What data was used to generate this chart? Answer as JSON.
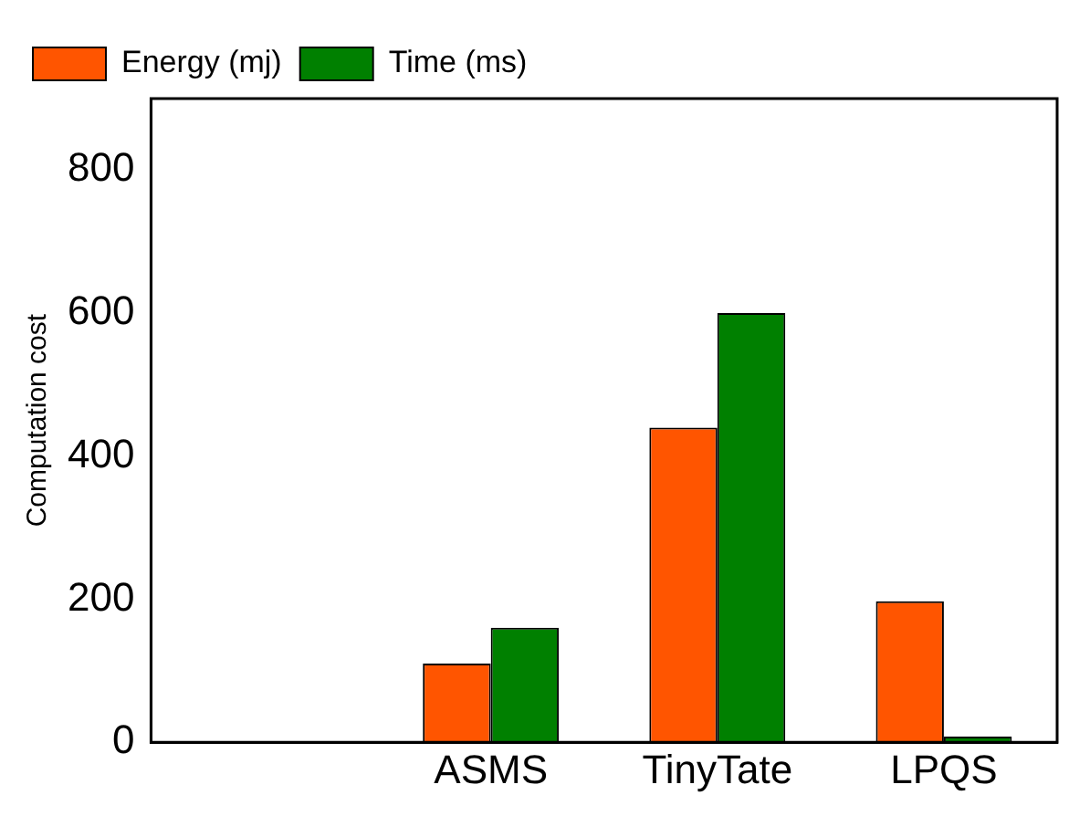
{
  "chart_data": {
    "type": "bar",
    "ylabel": "Computation cost",
    "categories": [
      null,
      "ASMS",
      "TinyTate",
      "LPQS"
    ],
    "series": [
      {
        "name": "Energy (mj)",
        "color": "#ff5500",
        "values": [
          null,
          110,
          440,
          197
        ]
      },
      {
        "name": "Time (ms)",
        "color": "#008000",
        "values": [
          null,
          160,
          600,
          8
        ]
      }
    ],
    "ylim": [
      0,
      900
    ],
    "yticks": [
      0,
      200,
      400,
      600,
      800
    ],
    "grid": false,
    "legend": "top left"
  }
}
